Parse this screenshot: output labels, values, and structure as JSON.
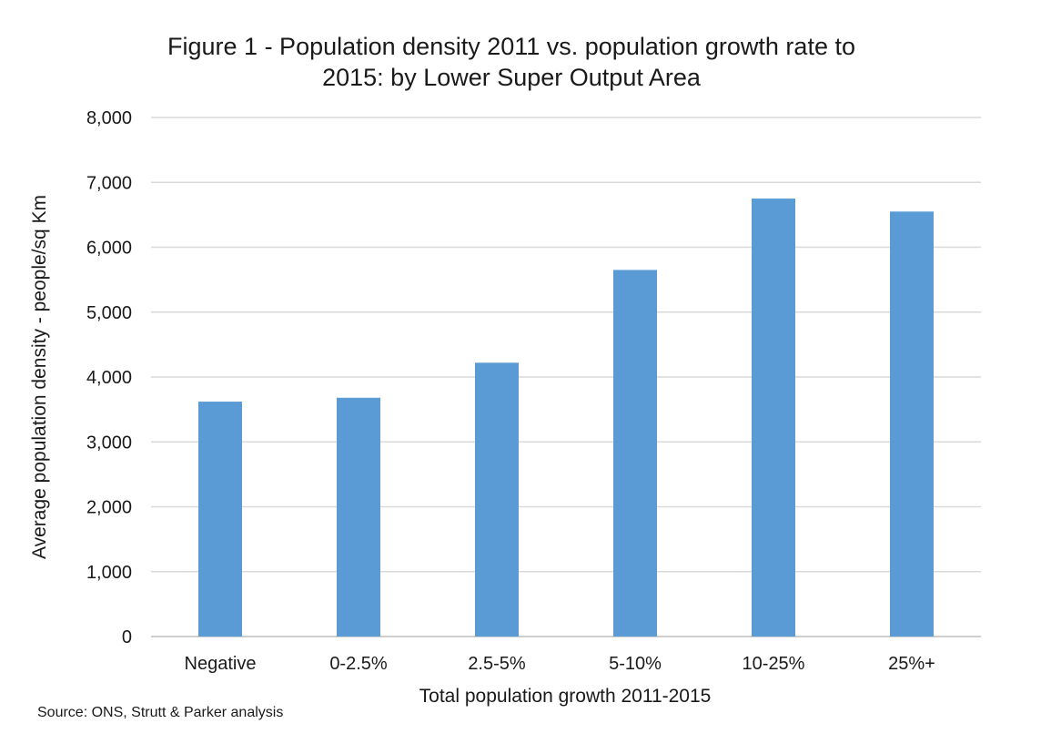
{
  "chart_data": {
    "type": "bar",
    "title_lines": [
      "Figure 1 - Population density 2011 vs. population growth rate to",
      "2015: by Lower Super Output Area"
    ],
    "xlabel": "Total population growth 2011-2015",
    "ylabel": "Average population density - people/sq Km",
    "categories": [
      "Negative",
      "0-2.5%",
      "2.5-5%",
      "5-10%",
      "10-25%",
      "25%+"
    ],
    "values": [
      3620,
      3680,
      4220,
      5650,
      6750,
      6550
    ],
    "ylim": [
      0,
      8000
    ],
    "yticks": [
      0,
      1000,
      2000,
      3000,
      4000,
      5000,
      6000,
      7000,
      8000
    ],
    "ytick_labels": [
      "0",
      "1,000",
      "2,000",
      "3,000",
      "4,000",
      "5,000",
      "6,000",
      "7,000",
      "8,000"
    ],
    "grid": true,
    "bar_color": "#5b9bd5",
    "grid_color": "#d9d9d9"
  },
  "source": "Source: ONS, Strutt & Parker analysis"
}
